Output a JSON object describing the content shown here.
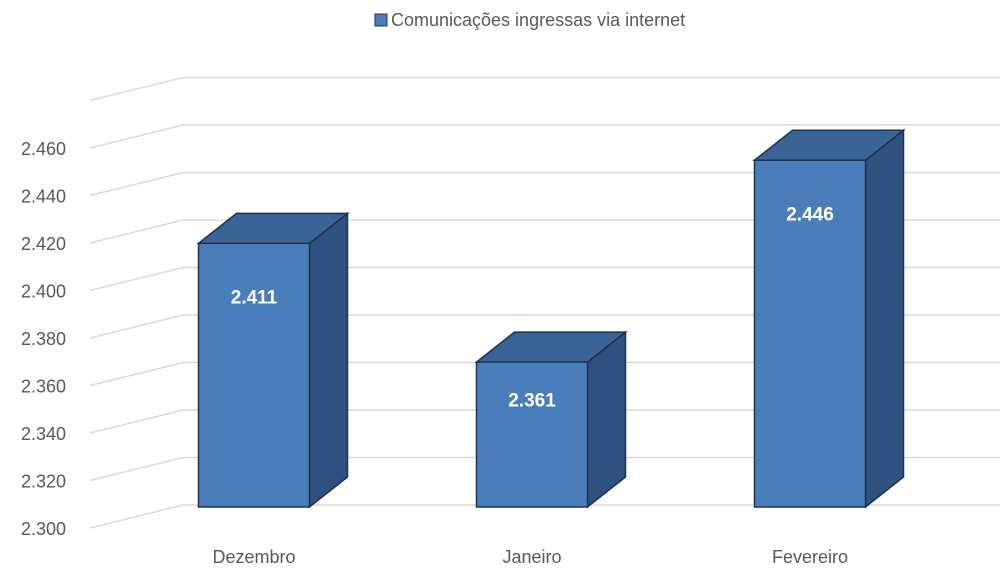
{
  "chart_data": {
    "type": "bar3d",
    "categories": [
      "Dezembro",
      "Janeiro",
      "Fevereiro"
    ],
    "series": [
      {
        "name": "Comunicações ingressas via internet",
        "color": "#4a7ebb",
        "values": [
          2411,
          2361,
          2446
        ],
        "value_labels": [
          "2.411",
          "2.361",
          "2.446"
        ]
      }
    ],
    "ylim": [
      2300,
      2480
    ],
    "yticks": [
      {
        "value": 2300,
        "label": "2.300"
      },
      {
        "value": 2320,
        "label": "2.320"
      },
      {
        "value": 2340,
        "label": "2.340"
      },
      {
        "value": 2360,
        "label": "2.360"
      },
      {
        "value": 2380,
        "label": "2.380"
      },
      {
        "value": 2400,
        "label": "2.400"
      },
      {
        "value": 2420,
        "label": "2.420"
      },
      {
        "value": 2440,
        "label": "2.440"
      },
      {
        "value": 2460,
        "label": "2.460"
      }
    ],
    "grid": true,
    "legend": "top"
  }
}
